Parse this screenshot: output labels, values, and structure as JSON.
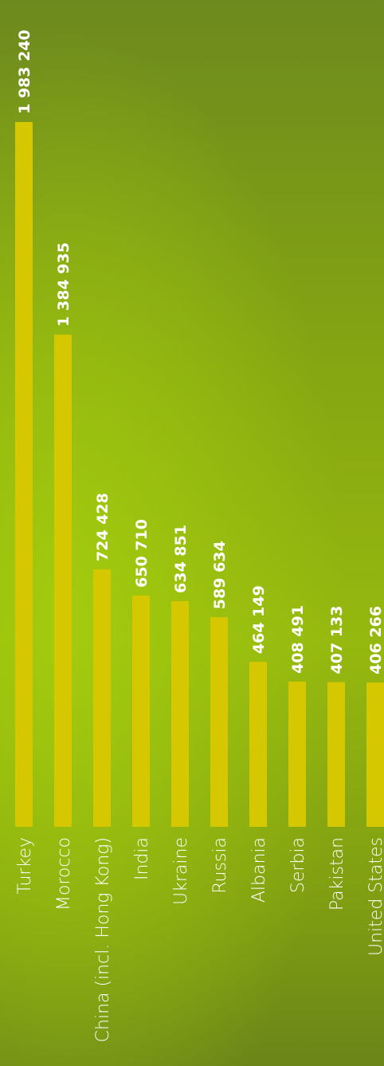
{
  "chart_data": {
    "type": "bar",
    "orientation": "vertical",
    "title": "",
    "xlabel": "",
    "ylabel": "",
    "categories": [
      "Turkey",
      "Morocco",
      "China (incl. Hong Kong)",
      "India",
      "Ukraine",
      "Russia",
      "Albania",
      "Serbia",
      "Pakistan",
      "United States"
    ],
    "values": [
      1983240,
      1384935,
      724428,
      650710,
      634851,
      589634,
      464149,
      408491,
      407133,
      406266
    ],
    "value_labels": [
      "1 983 240",
      "1 384 935",
      "724 428",
      "650 710",
      "634 851",
      "589 634",
      "464 149",
      "408 491",
      "407 133",
      "406 266"
    ],
    "ylim": [
      0,
      1983240
    ],
    "grid": false,
    "legend": "none",
    "colors": {
      "bar": "#d5c700",
      "text": "#ffffff",
      "background": "#8fb312"
    }
  }
}
